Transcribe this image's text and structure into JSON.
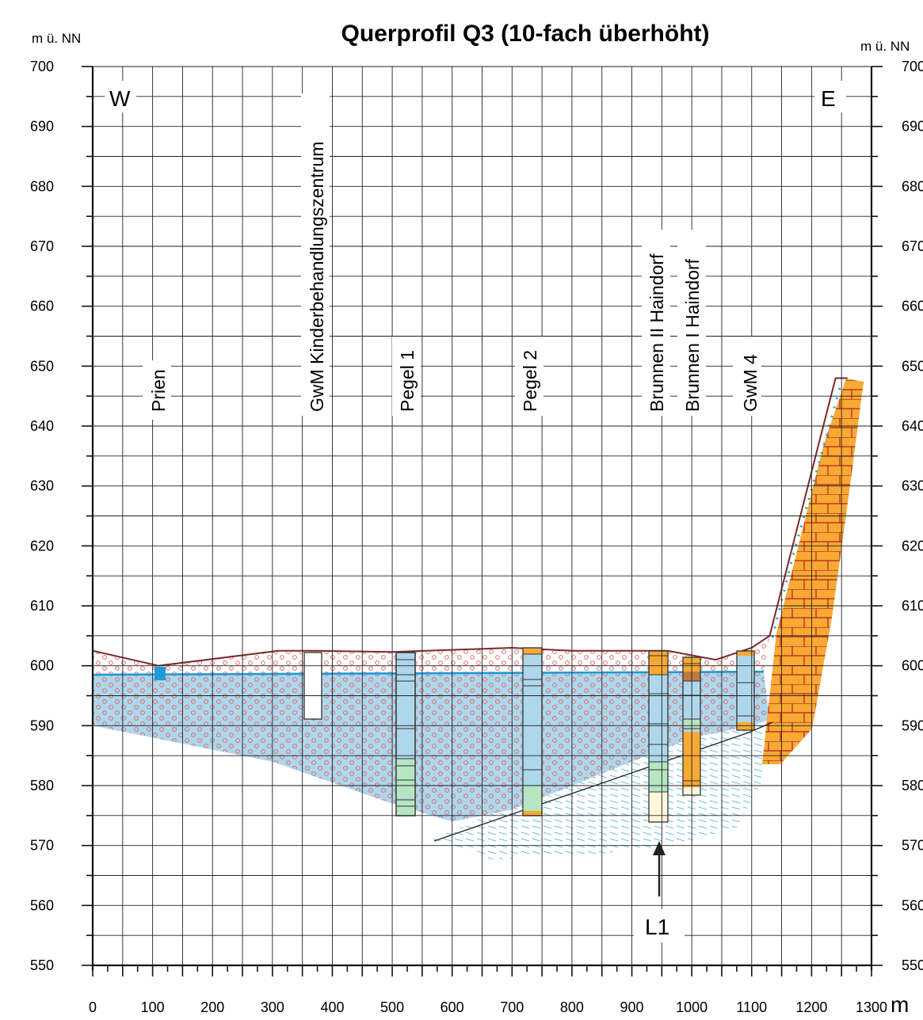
{
  "title": "Querprofil Q3 (10-fach überhöht)",
  "y_unit_left": "m ü. NN",
  "y_unit_right": "m ü. NN",
  "x_unit": "m",
  "west_label": "W",
  "east_label": "E",
  "l1_label": "L1",
  "x_ticks": [
    "0",
    "100",
    "200",
    "300",
    "400",
    "500",
    "600",
    "700",
    "800",
    "900",
    "1000",
    "1100",
    "1200",
    "1300"
  ],
  "y_ticks": [
    "550",
    "560",
    "570",
    "580",
    "590",
    "600",
    "610",
    "620",
    "630",
    "640",
    "650",
    "660",
    "670",
    "680",
    "690",
    "700"
  ],
  "colors": {
    "aquifer_blue": "#aed7ec",
    "water_line": "#1d9bd6",
    "surface_line": "#7a2a2a",
    "gravel_circle": "#e35d5d",
    "bedrock_orange": "#f7a934",
    "grid": "#222222"
  },
  "chart_data": {
    "type": "cross-section",
    "title": "Querprofil Q3 (10-fach überhöht)",
    "xlim": [
      0,
      1300
    ],
    "ylim": [
      550,
      700
    ],
    "xlabel": "m",
    "ylabel": "m ü. NN",
    "ground_surface": {
      "x": [
        0,
        110,
        310,
        370,
        500,
        700,
        740,
        800,
        960,
        1040,
        1100,
        1130,
        1240,
        1260
      ],
      "y": [
        602.5,
        600,
        602.5,
        602.5,
        602.3,
        603,
        602.8,
        602.5,
        602.5,
        601,
        603,
        605,
        648,
        648
      ]
    },
    "groundwater_table": {
      "x": [
        0,
        1120
      ],
      "y": [
        598.5,
        599
      ]
    },
    "aquifer_base": {
      "x": [
        0,
        150,
        300,
        500,
        600,
        700,
        800,
        900,
        1000,
        1100,
        1130
      ],
      "y": [
        590,
        587,
        584,
        577,
        574,
        576,
        580,
        584,
        588,
        590,
        591
      ]
    },
    "wells": [
      {
        "name": "Prien",
        "x": 110,
        "top": 600,
        "bottom": 598
      },
      {
        "name": "GwM Kinderbehandlungszentrum",
        "x": 365,
        "top": 602.5,
        "bottom": 591
      },
      {
        "name": "Pegel 1",
        "x": 520,
        "top": 602.3,
        "bottom": 575
      },
      {
        "name": "Pegel 2",
        "x": 735,
        "top": 603,
        "bottom": 575
      },
      {
        "name": "Brunnen II Haindorf",
        "x": 940,
        "top": 602.7,
        "bottom": 577.5
      },
      {
        "name": "Brunnen I Haindorf",
        "x": 1000,
        "top": 601.5,
        "bottom": 582.5
      },
      {
        "name": "GwM 4",
        "x": 1090,
        "top": 602.5,
        "bottom": 589.5
      }
    ],
    "annotations": [
      {
        "text": "L1",
        "x": 945,
        "y": 565
      },
      {
        "text": "W",
        "position": "top-left"
      },
      {
        "text": "E",
        "position": "top-right"
      }
    ]
  }
}
